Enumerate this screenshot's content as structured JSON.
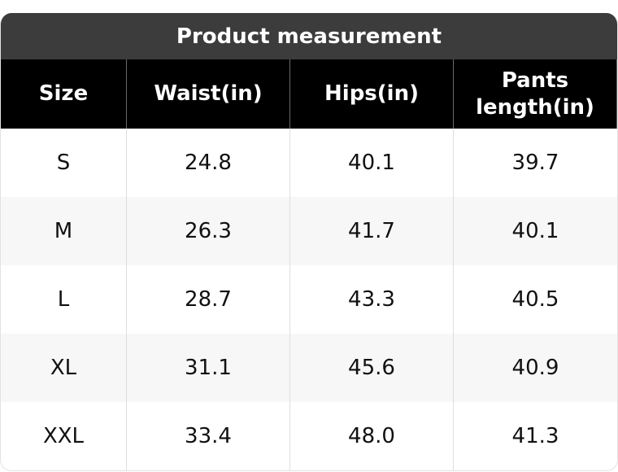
{
  "table": {
    "title": "Product measurement",
    "header": [
      "Size",
      "Waist(in)",
      "Hips(in)",
      "Pants length(in)"
    ],
    "rows": [
      [
        "S",
        "24.8",
        "40.1",
        "39.7"
      ],
      [
        "M",
        "26.3",
        "41.7",
        "40.1"
      ],
      [
        "L",
        "28.7",
        "43.3",
        "40.5"
      ],
      [
        "XL",
        "31.1",
        "45.6",
        "40.9"
      ],
      [
        "XXL",
        "33.4",
        "48.0",
        "41.3"
      ]
    ]
  }
}
